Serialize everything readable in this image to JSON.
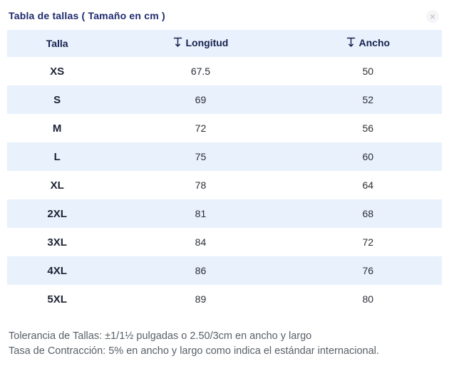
{
  "modal": {
    "title": "Tabla de tallas ( Tamaño en cm )",
    "close_glyph": "×"
  },
  "table": {
    "headers": [
      {
        "label": "Talla",
        "icon": null
      },
      {
        "label": "Longitud",
        "icon": "measure-height-icon"
      },
      {
        "label": "Ancho",
        "icon": "measure-height-icon"
      }
    ],
    "rows": [
      [
        "XS",
        "67.5",
        "50"
      ],
      [
        "S",
        "69",
        "52"
      ],
      [
        "M",
        "72",
        "56"
      ],
      [
        "L",
        "75",
        "60"
      ],
      [
        "XL",
        "78",
        "64"
      ],
      [
        "2XL",
        "81",
        "68"
      ],
      [
        "3XL",
        "84",
        "72"
      ],
      [
        "4XL",
        "86",
        "76"
      ],
      [
        "5XL",
        "89",
        "80"
      ]
    ]
  },
  "footer": {
    "line1": "Tolerancia de Tallas: ±1/1½ pulgadas o 2.50/3cm en ancho y largo",
    "line2": "Tasa de Contracción: 5% en ancho y largo como indica el estándar internacional."
  },
  "colors": {
    "title": "#1f2a6e",
    "header_row_bg": "#e8f1fc",
    "header_text": "#16224e",
    "alt_row_bg": "#e8f1fc",
    "footer_text": "#595f66"
  }
}
